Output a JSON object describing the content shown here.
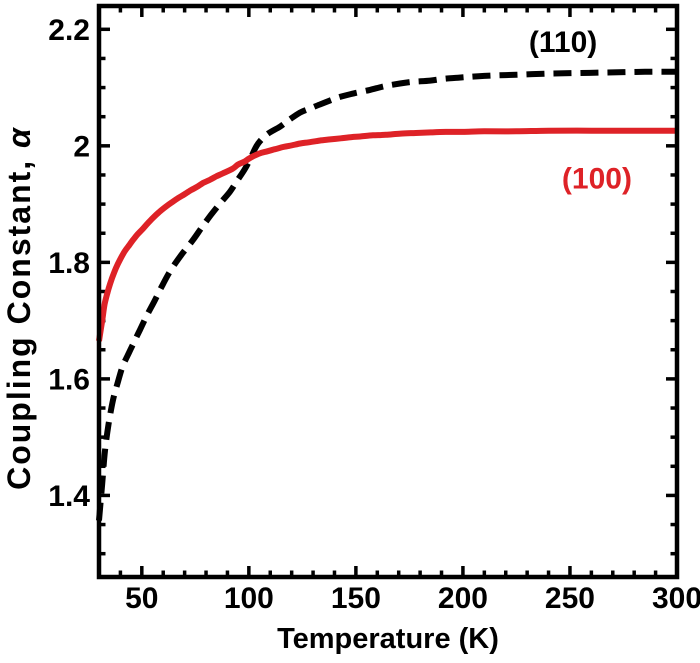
{
  "figure": {
    "background": "#ffffff",
    "frame_color": "#000000"
  },
  "chart_data": {
    "type": "line",
    "title": "",
    "xlabel": "Temperature (K)",
    "ylabel": "Coupling Constant, α",
    "ylabel_prefix": "Coupling Constant, ",
    "ylabel_symbol": "α",
    "xlim": [
      30,
      300
    ],
    "ylim": [
      1.26,
      2.24
    ],
    "grid": false,
    "legend_position": "inline annotations",
    "x_major_ticks": [
      50,
      100,
      150,
      200,
      250,
      300
    ],
    "x_tick_labels": [
      "50",
      "100",
      "150",
      "200",
      "250",
      "300"
    ],
    "x_minor_step": 10,
    "y_major_ticks": [
      1.4,
      1.6,
      1.8,
      2.0,
      2.2
    ],
    "y_tick_labels": [
      "1.4",
      "1.6",
      "1.8",
      "2",
      "2.2"
    ],
    "y_minor_step": 0.05,
    "series": [
      {
        "name": "(110)",
        "color": "#000000",
        "line_style": "dashed",
        "line_width": 6,
        "points": [
          [
            30,
            1.357
          ],
          [
            31.5,
            1.42
          ],
          [
            32.8,
            1.477
          ],
          [
            34.5,
            1.523
          ],
          [
            36.5,
            1.563
          ],
          [
            38.8,
            1.594
          ],
          [
            41,
            1.621
          ],
          [
            44,
            1.645
          ],
          [
            46.5,
            1.664
          ],
          [
            49.1,
            1.684
          ],
          [
            52.5,
            1.71
          ],
          [
            56.1,
            1.735
          ],
          [
            59.5,
            1.76
          ],
          [
            63.6,
            1.787
          ],
          [
            68.5,
            1.813
          ],
          [
            73.8,
            1.838
          ],
          [
            78,
            1.86
          ],
          [
            82.2,
            1.881
          ],
          [
            86.5,
            1.901
          ],
          [
            91.1,
            1.921
          ],
          [
            94.5,
            1.94
          ],
          [
            98.1,
            1.96
          ],
          [
            101,
            1.98
          ],
          [
            103,
            1.996
          ],
          [
            105.2,
            2.008
          ],
          [
            109,
            2.021
          ],
          [
            114.6,
            2.033
          ],
          [
            119,
            2.045
          ],
          [
            123.9,
            2.057
          ],
          [
            128.5,
            2.064
          ],
          [
            133.2,
            2.071
          ],
          [
            138,
            2.078
          ],
          [
            142.6,
            2.084
          ],
          [
            149,
            2.09
          ],
          [
            156.6,
            2.096
          ],
          [
            163,
            2.102
          ],
          [
            170.6,
            2.107
          ],
          [
            177,
            2.11
          ],
          [
            184.7,
            2.112
          ],
          [
            191,
            2.115
          ],
          [
            197.7,
            2.117
          ],
          [
            210,
            2.12
          ],
          [
            225,
            2.122
          ],
          [
            240,
            2.124
          ],
          [
            255,
            2.125
          ],
          [
            270,
            2.126
          ],
          [
            285,
            2.127
          ],
          [
            300,
            2.127
          ]
        ]
      },
      {
        "name": "(100)",
        "color": "#de2227",
        "line_style": "solid",
        "line_width": 6,
        "points": [
          [
            30,
            1.665
          ],
          [
            31.5,
            1.7
          ],
          [
            32.7,
            1.73
          ],
          [
            34.5,
            1.755
          ],
          [
            36,
            1.772
          ],
          [
            37.9,
            1.79
          ],
          [
            40,
            1.806
          ],
          [
            42,
            1.819
          ],
          [
            44,
            1.829
          ],
          [
            45.8,
            1.838
          ],
          [
            48,
            1.848
          ],
          [
            50.3,
            1.857
          ],
          [
            52.5,
            1.866
          ],
          [
            55.1,
            1.876
          ],
          [
            58,
            1.886
          ],
          [
            61,
            1.895
          ],
          [
            64,
            1.903
          ],
          [
            66.8,
            1.91
          ],
          [
            70,
            1.917
          ],
          [
            73,
            1.924
          ],
          [
            76,
            1.93
          ],
          [
            78.5,
            1.936
          ],
          [
            82,
            1.942
          ],
          [
            85,
            1.948
          ],
          [
            88,
            1.953
          ],
          [
            92.5,
            1.961
          ],
          [
            95,
            1.968
          ],
          [
            98,
            1.973
          ],
          [
            100,
            1.978
          ],
          [
            102,
            1.982
          ],
          [
            105,
            1.987
          ],
          [
            108,
            1.99
          ],
          [
            112,
            1.994
          ],
          [
            116,
            1.998
          ],
          [
            119,
            2.0
          ],
          [
            124,
            2.004
          ],
          [
            128,
            2.006
          ],
          [
            133,
            2.009
          ],
          [
            138,
            2.011
          ],
          [
            143,
            2.013
          ],
          [
            148,
            2.015
          ],
          [
            152,
            2.016
          ],
          [
            158,
            2.018
          ],
          [
            164,
            2.019
          ],
          [
            171,
            2.021
          ],
          [
            178,
            2.022
          ],
          [
            185,
            2.023
          ],
          [
            192,
            2.024
          ],
          [
            200,
            2.024
          ],
          [
            210,
            2.025
          ],
          [
            225,
            2.025
          ],
          [
            240,
            2.026
          ],
          [
            260,
            2.026
          ],
          [
            280,
            2.026
          ],
          [
            300,
            2.026
          ]
        ]
      }
    ],
    "annotations": [
      {
        "text": "(110)",
        "color": "#000000",
        "x": 246.8,
        "y": 2.179
      },
      {
        "text": "(100)",
        "color": "#de2227",
        "x": 262.6,
        "y": 1.945
      }
    ]
  }
}
